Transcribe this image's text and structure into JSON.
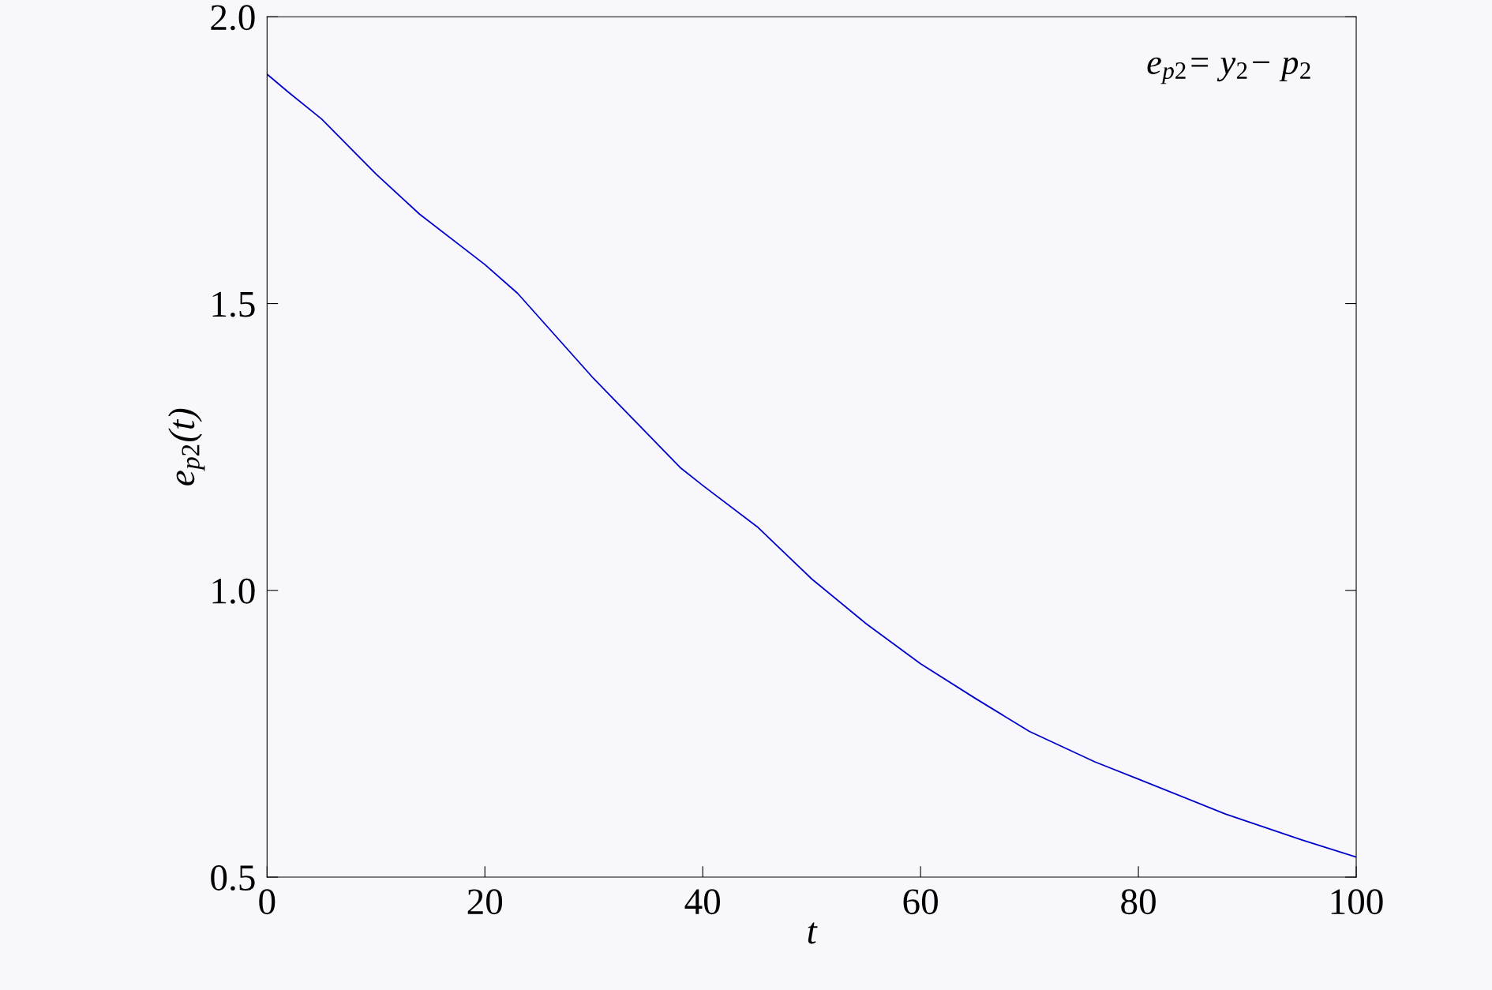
{
  "chart_data": {
    "type": "line",
    "xlabel": "t",
    "ylabel": "e$_{p2}$(t)",
    "annotations": [
      "e$_{p2}$= y$_{2}$− p$_{2}$"
    ],
    "xlim": [
      0,
      100
    ],
    "ylim": [
      0.5,
      2.0
    ],
    "xticks": [
      0,
      20,
      40,
      60,
      80,
      100
    ],
    "yticks": [
      {
        "value": 0.5,
        "label": "0.5"
      },
      {
        "value": 1.0,
        "label": "1.0"
      },
      {
        "value": 1.5,
        "label": "1.5"
      },
      {
        "value": 2.0,
        "label": "2.0"
      }
    ],
    "grid": false,
    "series": [
      {
        "color": "#0000cc",
        "x": [
          0,
          2,
          5,
          10,
          14,
          20,
          23,
          30,
          38,
          40,
          45,
          50,
          55,
          60,
          65,
          70,
          76,
          80,
          88,
          95,
          100
        ],
        "values": [
          1.9,
          1.868,
          1.822,
          1.726,
          1.656,
          1.568,
          1.518,
          1.369,
          1.213,
          1.183,
          1.111,
          1.02,
          0.942,
          0.872,
          0.812,
          0.754,
          0.701,
          0.671,
          0.61,
          0.565,
          0.535
        ]
      }
    ]
  }
}
